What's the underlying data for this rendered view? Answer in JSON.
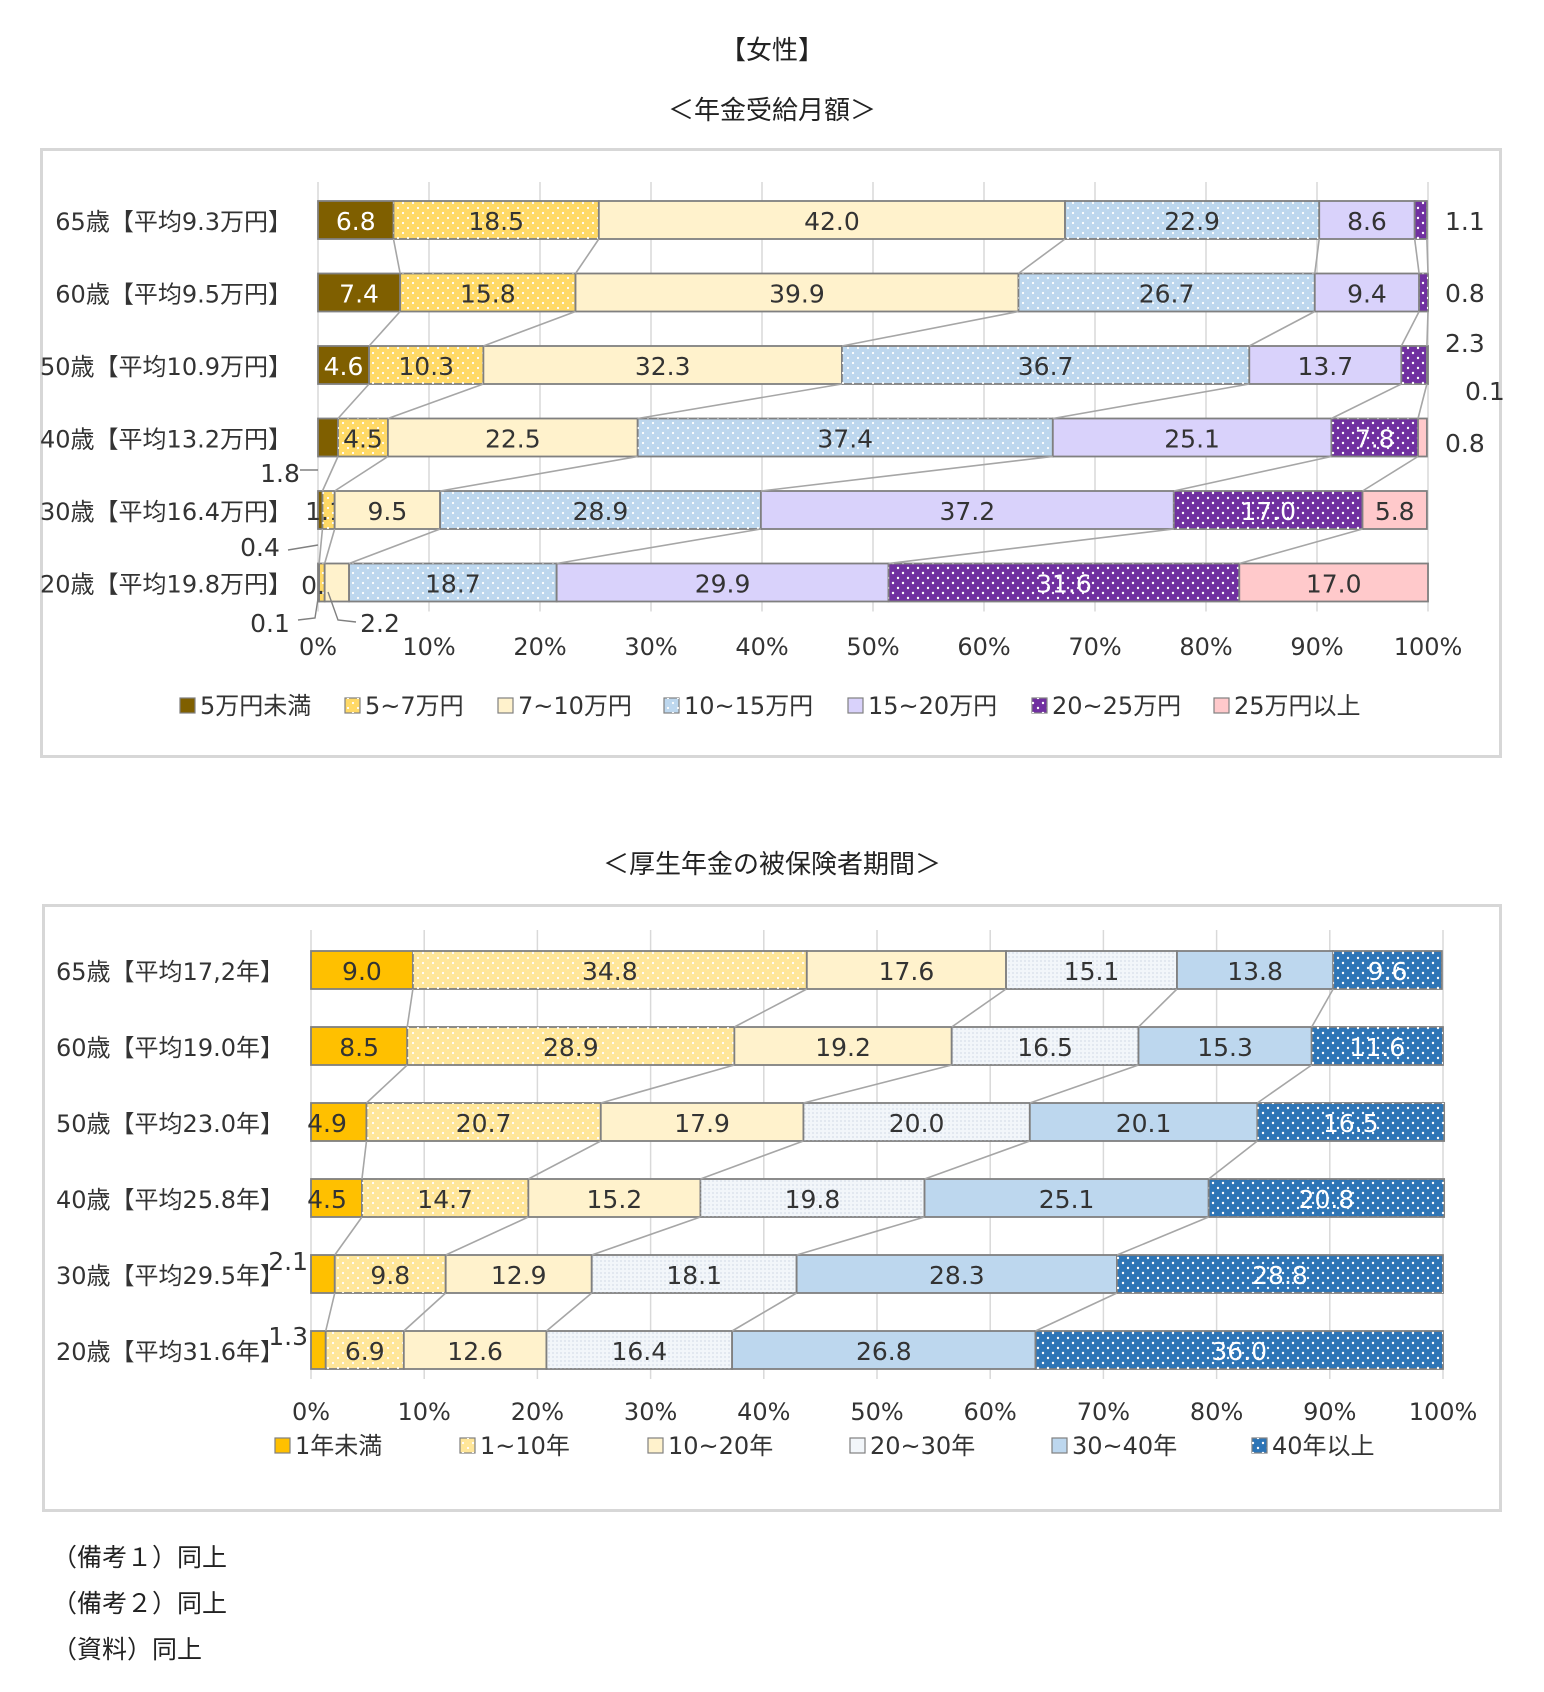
{
  "page_title": "【女性】",
  "notes": [
    "（備考１）同上",
    "（備考２）同上",
    "（資料）同上"
  ],
  "chart_data": [
    {
      "type": "bar",
      "stacked": "100%",
      "orientation": "horizontal",
      "title": "＜年金受給月額＞",
      "xlim": [
        0,
        100
      ],
      "x_tick_labels": [
        "0%",
        "10%",
        "20%",
        "30%",
        "40%",
        "50%",
        "60%",
        "70%",
        "80%",
        "90%",
        "100%"
      ],
      "grid": true,
      "legend_position": "bottom",
      "categories": [
        "65歳【平均9.3万円】",
        "60歳【平均9.5万円】",
        "50歳【平均10.9万円】",
        "40歳【平均13.2万円】",
        "30歳【平均16.4万円】",
        "20歳【平均19.8万円】"
      ],
      "series": [
        {
          "name": "5万円未満",
          "color": "#7f5f00",
          "pattern": "solid",
          "values": [
            6.8,
            7.4,
            4.6,
            1.8,
            0.4,
            0.1
          ]
        },
        {
          "name": "5~7万円",
          "color": "#ffd966",
          "pattern": "dots",
          "values": [
            18.5,
            15.8,
            10.3,
            4.5,
            1.1,
            0.5
          ]
        },
        {
          "name": "7~10万円",
          "color": "#fff2cc",
          "pattern": "solid",
          "values": [
            42.0,
            39.9,
            32.3,
            22.5,
            9.5,
            2.2
          ]
        },
        {
          "name": "10~15万円",
          "color": "#bdd7ee",
          "pattern": "dots",
          "values": [
            22.9,
            26.7,
            36.7,
            37.4,
            28.9,
            18.7
          ]
        },
        {
          "name": "15~20万円",
          "color": "#d9d2fb",
          "pattern": "solid",
          "values": [
            8.6,
            9.4,
            13.7,
            25.1,
            37.2,
            29.9
          ]
        },
        {
          "name": "20~25万円",
          "color": "#7030a0",
          "pattern": "dots",
          "values": [
            1.1,
            0.8,
            2.3,
            7.8,
            17.0,
            31.6
          ]
        },
        {
          "name": "25万円以上",
          "color": "#ffc9cb",
          "pattern": "solid",
          "values": [
            0.0,
            0.0,
            0.1,
            0.8,
            5.8,
            17.0
          ]
        }
      ],
      "labels": [
        [
          "6.8",
          "18.5",
          "42.0",
          "22.9",
          "8.6",
          "1.1",
          ""
        ],
        [
          "7.4",
          "15.8",
          "39.9",
          "26.7",
          "9.4",
          "0.8",
          ""
        ],
        [
          "4.6",
          "10.3",
          "32.3",
          "36.7",
          "13.7",
          "2.3",
          "0.1"
        ],
        [
          "1.8",
          "4.5",
          "22.5",
          "37.4",
          "25.1",
          "7.8",
          "0.8"
        ],
        [
          "0.4",
          "1.1",
          "9.5",
          "28.9",
          "37.2",
          "17.0",
          "5.8"
        ],
        [
          "0.1",
          "0.5",
          "2.2",
          "18.7",
          "29.9",
          "31.6",
          "17.0"
        ]
      ]
    },
    {
      "type": "bar",
      "stacked": "100%",
      "orientation": "horizontal",
      "title": "＜厚生年金の被保険者期間＞",
      "xlim": [
        0,
        100
      ],
      "x_tick_labels": [
        "0%",
        "10%",
        "20%",
        "30%",
        "40%",
        "50%",
        "60%",
        "70%",
        "80%",
        "90%",
        "100%"
      ],
      "grid": true,
      "legend_position": "bottom",
      "categories": [
        "65歳【平均17,2年】",
        "60歳【平均19.0年】",
        "50歳【平均23.0年】",
        "40歳【平均25.8年】",
        "30歳【平均29.5年】",
        "20歳【平均31.6年】"
      ],
      "series": [
        {
          "name": "1年未満",
          "color": "#ffc000",
          "pattern": "solid",
          "values": [
            9.0,
            8.5,
            4.9,
            4.5,
            2.1,
            1.3
          ]
        },
        {
          "name": "1~10年",
          "color": "#ffe699",
          "pattern": "dots",
          "values": [
            34.8,
            28.9,
            20.7,
            14.7,
            9.8,
            6.9
          ]
        },
        {
          "name": "10~20年",
          "color": "#fff2cc",
          "pattern": "solid",
          "values": [
            17.6,
            19.2,
            17.9,
            15.2,
            12.9,
            12.6
          ]
        },
        {
          "name": "20~30年",
          "color": "#f2f6fa",
          "pattern": "finedots",
          "values": [
            15.1,
            16.5,
            20.0,
            19.8,
            18.1,
            16.4
          ]
        },
        {
          "name": "30~40年",
          "color": "#bdd7ee",
          "pattern": "solid",
          "values": [
            13.8,
            15.3,
            20.1,
            25.1,
            28.3,
            26.8
          ]
        },
        {
          "name": "40年以上",
          "color": "#2e75b6",
          "pattern": "dots",
          "values": [
            9.6,
            11.6,
            16.5,
            20.8,
            28.8,
            36.0
          ]
        }
      ],
      "labels": [
        [
          "9.0",
          "34.8",
          "17.6",
          "15.1",
          "13.8",
          "9.6"
        ],
        [
          "8.5",
          "28.9",
          "19.2",
          "16.5",
          "15.3",
          "11.6"
        ],
        [
          "4.9",
          "20.7",
          "17.9",
          "20.0",
          "20.1",
          "16.5"
        ],
        [
          "4.5",
          "14.7",
          "15.2",
          "19.8",
          "25.1",
          "20.8"
        ],
        [
          "2.1",
          "9.8",
          "12.9",
          "18.1",
          "28.3",
          "28.8"
        ],
        [
          "1.3",
          "6.9",
          "12.6",
          "16.4",
          "26.8",
          "36.0"
        ]
      ]
    }
  ]
}
